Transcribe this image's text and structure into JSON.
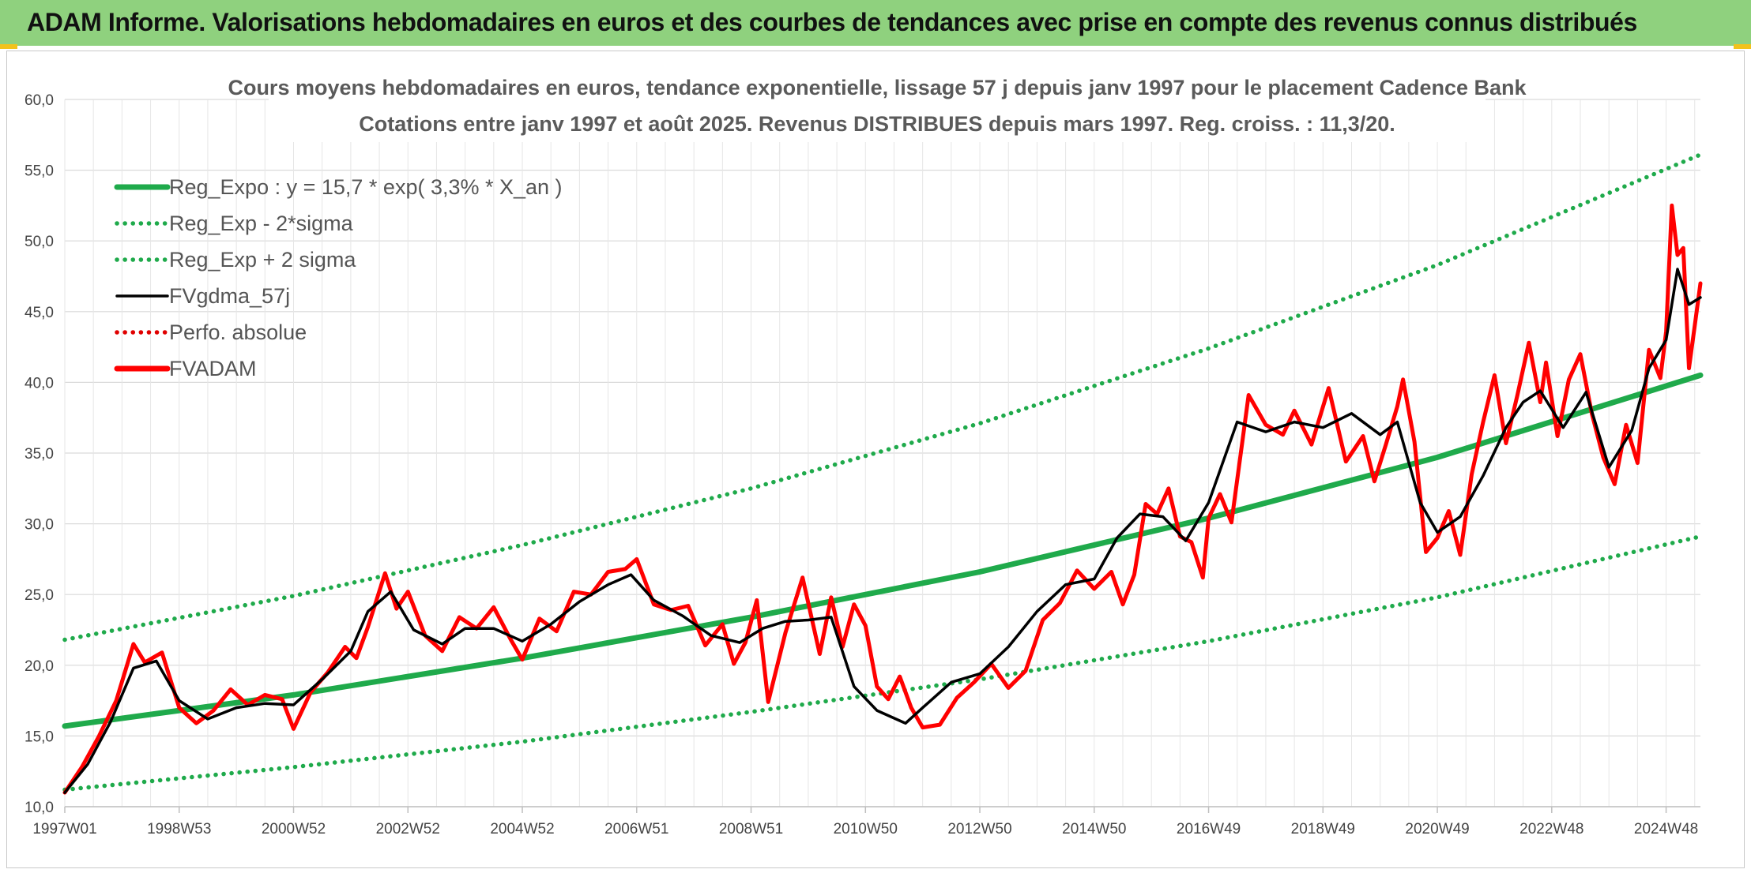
{
  "header": {
    "title": "ADAM Informe. Valorisations hebdomadaires en euros et des courbes de tendances avec prise en compte des revenus connus distribués"
  },
  "chart_data": {
    "type": "line",
    "title": "Cours moyens hebdomadaires en euros, tendance exponentielle, lissage 57 j depuis janv 1997 pour le placement Cadence Bank",
    "subtitle": "Cotations entre janv 1997 et août 2025. Revenus DISTRIBUES depuis mars 1997. Reg. croiss. : 11,3/20.",
    "xlabel": "",
    "ylabel": "",
    "ylim": [
      10,
      60
    ],
    "y_ticks": [
      "10,0",
      "15,0",
      "20,0",
      "25,0",
      "30,0",
      "35,0",
      "40,0",
      "45,0",
      "50,0",
      "55,0",
      "60,0"
    ],
    "x_range": [
      1997.0,
      2025.6
    ],
    "x_ticks": [
      {
        "label": "1997W01",
        "x": 1997.0
      },
      {
        "label": "1998W53",
        "x": 1999.0
      },
      {
        "label": "2000W52",
        "x": 2001.0
      },
      {
        "label": "2002W52",
        "x": 2003.0
      },
      {
        "label": "2004W52",
        "x": 2005.0
      },
      {
        "label": "2006W51",
        "x": 2007.0
      },
      {
        "label": "2008W51",
        "x": 2009.0
      },
      {
        "label": "2010W50",
        "x": 2011.0
      },
      {
        "label": "2012W50",
        "x": 2013.0
      },
      {
        "label": "2014W50",
        "x": 2015.0
      },
      {
        "label": "2016W49",
        "x": 2017.0
      },
      {
        "label": "2018W49",
        "x": 2019.0
      },
      {
        "label": "2020W49",
        "x": 2021.0
      },
      {
        "label": "2022W48",
        "x": 2023.0
      },
      {
        "label": "2024W48",
        "x": 2025.0
      }
    ],
    "grid": true,
    "legend_position": "top-left",
    "regression": {
      "a": 15.7,
      "rate": 0.033
    },
    "series": [
      {
        "name": "Reg_Expo : y = 15,7 * exp( 3,3% *  X_an )",
        "style": "solid-thick",
        "color": "#1faa4b",
        "x": [
          1997.0,
          2001.0,
          2005.0,
          2009.0,
          2013.0,
          2017.0,
          2021.0,
          2025.6
        ],
        "values": [
          15.7,
          17.9,
          20.5,
          23.4,
          26.6,
          30.4,
          34.7,
          40.5
        ]
      },
      {
        "name": "Reg_Exp - 2*sigma",
        "style": "dotted",
        "color": "#1faa4b",
        "x": [
          1997.0,
          2001.0,
          2005.0,
          2009.0,
          2013.0,
          2017.0,
          2021.0,
          2025.6
        ],
        "values": [
          11.2,
          12.8,
          14.6,
          16.7,
          19.0,
          21.7,
          24.8,
          29.1
        ]
      },
      {
        "name": "Reg_Exp + 2 sigma",
        "style": "dotted",
        "color": "#1faa4b",
        "x": [
          1997.0,
          2001.0,
          2005.0,
          2009.0,
          2013.0,
          2017.0,
          2021.0,
          2025.6
        ],
        "values": [
          21.8,
          24.9,
          28.5,
          32.5,
          37.1,
          42.4,
          48.3,
          56.1
        ]
      },
      {
        "name": "FVgdma_57j",
        "style": "solid",
        "color": "#000000",
        "x": [
          1997.0,
          1997.4,
          1997.8,
          1998.2,
          1998.6,
          1999.0,
          1999.5,
          2000.0,
          2000.5,
          2001.0,
          2001.5,
          2002.0,
          2002.3,
          2002.7,
          2003.1,
          2003.6,
          2004.0,
          2004.5,
          2005.0,
          2005.5,
          2006.0,
          2006.5,
          2006.9,
          2007.3,
          2007.8,
          2008.3,
          2008.8,
          2009.2,
          2009.6,
          2010.0,
          2010.4,
          2010.8,
          2011.2,
          2011.7,
          2012.0,
          2012.5,
          2013.0,
          2013.5,
          2014.0,
          2014.5,
          2015.0,
          2015.4,
          2015.8,
          2016.2,
          2016.6,
          2017.0,
          2017.5,
          2018.0,
          2018.5,
          2019.0,
          2019.5,
          2020.0,
          2020.3,
          2020.7,
          2021.0,
          2021.4,
          2021.8,
          2022.2,
          2022.5,
          2022.8,
          2023.2,
          2023.6,
          2024.0,
          2024.4,
          2024.7,
          2025.0,
          2025.2,
          2025.4,
          2025.6
        ],
        "values": [
          11.0,
          13.0,
          16.0,
          19.8,
          20.3,
          17.5,
          16.2,
          17.0,
          17.3,
          17.2,
          19.0,
          21.0,
          23.8,
          25.2,
          22.5,
          21.5,
          22.6,
          22.6,
          21.7,
          22.9,
          24.5,
          25.7,
          26.4,
          24.6,
          23.5,
          22.1,
          21.6,
          22.6,
          23.1,
          23.2,
          23.4,
          18.5,
          16.8,
          15.9,
          17.0,
          18.8,
          19.4,
          21.3,
          23.8,
          25.7,
          26.1,
          29.0,
          30.7,
          30.5,
          28.8,
          31.5,
          37.2,
          36.5,
          37.2,
          36.8,
          37.8,
          36.3,
          37.2,
          31.5,
          29.4,
          30.5,
          33.4,
          36.8,
          38.6,
          39.4,
          36.8,
          39.3,
          34.0,
          36.6,
          41.0,
          43.0,
          48.0,
          45.5,
          46.0
        ]
      },
      {
        "name": "Perfo. absolue",
        "style": "dotted",
        "color": "#e00000",
        "x": [],
        "values": []
      },
      {
        "name": "FVADAM",
        "style": "solid-thick",
        "color": "#ff0000",
        "x": [
          1997.0,
          1997.3,
          1997.6,
          1997.9,
          1998.2,
          1998.4,
          1998.7,
          1999.0,
          1999.3,
          1999.6,
          1999.9,
          2000.2,
          2000.5,
          2000.8,
          2001.0,
          2001.3,
          2001.6,
          2001.9,
          2002.1,
          2002.3,
          2002.6,
          2002.8,
          2003.0,
          2003.3,
          2003.6,
          2003.9,
          2004.2,
          2004.5,
          2004.8,
          2005.0,
          2005.3,
          2005.6,
          2005.9,
          2006.2,
          2006.5,
          2006.8,
          2007.0,
          2007.3,
          2007.6,
          2007.9,
          2008.2,
          2008.5,
          2008.7,
          2008.9,
          2009.1,
          2009.3,
          2009.6,
          2009.9,
          2010.2,
          2010.4,
          2010.6,
          2010.8,
          2011.0,
          2011.2,
          2011.4,
          2011.6,
          2011.8,
          2012.0,
          2012.3,
          2012.6,
          2012.9,
          2013.2,
          2013.5,
          2013.8,
          2014.1,
          2014.4,
          2014.7,
          2015.0,
          2015.3,
          2015.5,
          2015.7,
          2015.9,
          2016.1,
          2016.3,
          2016.5,
          2016.7,
          2016.9,
          2017.0,
          2017.2,
          2017.4,
          2017.7,
          2018.0,
          2018.3,
          2018.5,
          2018.8,
          2019.1,
          2019.4,
          2019.7,
          2019.9,
          2020.1,
          2020.3,
          2020.4,
          2020.6,
          2020.8,
          2021.0,
          2021.2,
          2021.4,
          2021.6,
          2021.8,
          2022.0,
          2022.2,
          2022.4,
          2022.6,
          2022.8,
          2022.9,
          2023.1,
          2023.3,
          2023.5,
          2023.7,
          2023.9,
          2024.1,
          2024.3,
          2024.5,
          2024.7,
          2024.9,
          2025.0,
          2025.1,
          2025.2,
          2025.3,
          2025.4,
          2025.5,
          2025.6
        ],
        "values": [
          11.0,
          12.8,
          15.0,
          17.5,
          21.5,
          20.2,
          20.9,
          17.0,
          15.9,
          16.8,
          18.3,
          17.2,
          17.9,
          17.6,
          15.5,
          18.1,
          19.5,
          21.3,
          20.5,
          22.7,
          26.5,
          24.0,
          25.2,
          22.1,
          21.0,
          23.4,
          22.6,
          24.1,
          21.8,
          20.4,
          23.3,
          22.4,
          25.2,
          25.0,
          26.6,
          26.8,
          27.5,
          24.3,
          23.9,
          24.2,
          21.4,
          22.9,
          20.1,
          21.6,
          24.6,
          17.4,
          22.3,
          26.2,
          20.8,
          24.8,
          21.3,
          24.3,
          22.8,
          18.5,
          17.6,
          19.2,
          17.0,
          15.6,
          15.8,
          17.7,
          18.8,
          20.1,
          18.4,
          19.6,
          23.2,
          24.4,
          26.7,
          25.4,
          26.6,
          24.3,
          26.4,
          31.4,
          30.7,
          32.5,
          29.1,
          28.7,
          26.2,
          30.4,
          32.1,
          30.1,
          39.1,
          37.0,
          36.3,
          38.0,
          35.6,
          39.6,
          34.4,
          36.2,
          33.0,
          35.6,
          38.3,
          40.2,
          35.8,
          28.0,
          29.0,
          30.9,
          27.8,
          33.5,
          37.2,
          40.5,
          35.7,
          39.1,
          42.8,
          38.6,
          41.4,
          36.2,
          40.2,
          42.0,
          37.8,
          34.7,
          32.8,
          37.0,
          34.3,
          42.3,
          40.3,
          43.6,
          52.5,
          49.0,
          49.5,
          41.0,
          44.0,
          47.0
        ]
      }
    ]
  }
}
